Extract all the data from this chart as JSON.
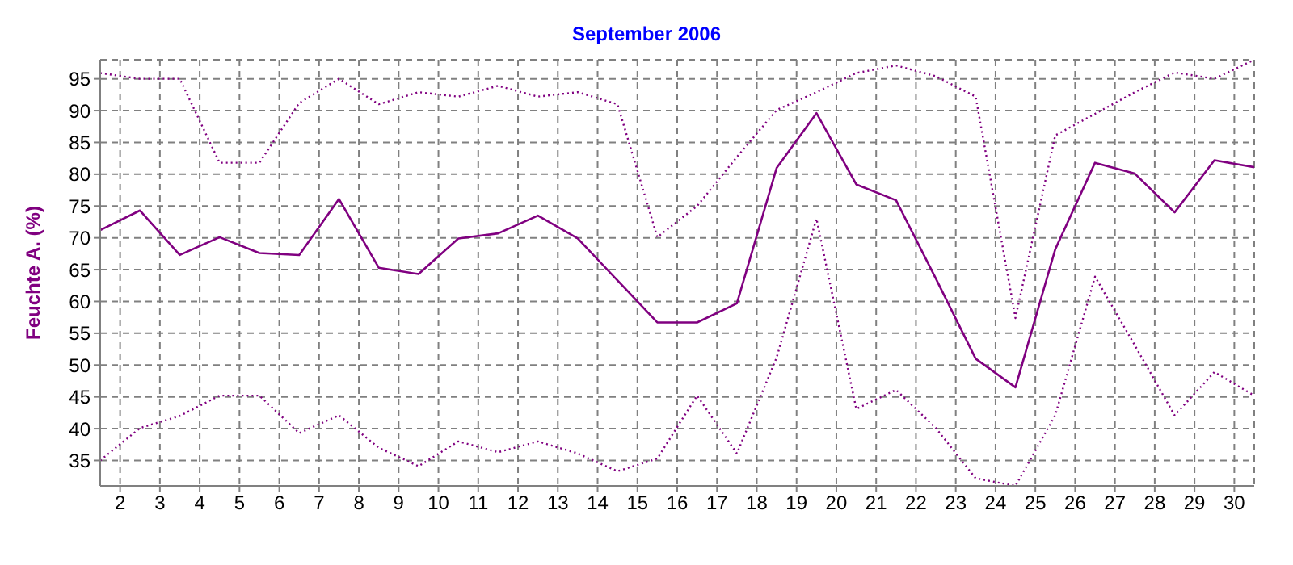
{
  "chart_data": {
    "type": "line",
    "title": "September 2006",
    "ylabel": "Feuchte A. (%)",
    "x": [
      1.5,
      2.5,
      3.5,
      4.5,
      5.5,
      6.5,
      7.5,
      8.5,
      9.5,
      10.5,
      11.5,
      12.5,
      13.5,
      14.5,
      15.5,
      16.5,
      17.5,
      18.5,
      19.5,
      20.5,
      21.5,
      22.5,
      23.5,
      24.5,
      25.5,
      26.5,
      27.5,
      28.5,
      29.5,
      30.5
    ],
    "series": [
      {
        "color": "#800080",
        "line_style": "dotted",
        "values": [
          95.9,
          95,
          95,
          81.8,
          81.8,
          91.2,
          95,
          91,
          92.9,
          92.2,
          93.9,
          92.2,
          92.9,
          91,
          70.1,
          75,
          82.7,
          90.1,
          92.9,
          95.9,
          97.1,
          95.4,
          92.2,
          57.4,
          86.1,
          89.5,
          92.9,
          96,
          95,
          98
        ]
      },
      {
        "color": "#800080",
        "line_style": "solid",
        "values": [
          71.2,
          74.3,
          67.3,
          70.1,
          67.6,
          67.3,
          76.1,
          65.3,
          64.3,
          69.9,
          70.7,
          73.5,
          69.9,
          63.3,
          56.7,
          56.7,
          59.7,
          81,
          89.6,
          78.4,
          75.9,
          63.6,
          51,
          46.5,
          68.2,
          81.8,
          80.1,
          74,
          82.2,
          81.1
        ]
      },
      {
        "color": "#800080",
        "line_style": "dotted",
        "values": [
          35,
          40.1,
          42,
          45.2,
          45.2,
          39.3,
          42.1,
          37,
          34.1,
          38,
          36.3,
          38,
          36.1,
          33.3,
          35.3,
          45.2,
          36.1,
          51.2,
          73,
          43.1,
          46.1,
          40.1,
          32.2,
          31,
          42.1,
          63.9,
          53.1,
          42.1,
          48.9,
          45.2
        ]
      }
    ],
    "xlim": [
      1.5,
      30.5
    ],
    "xticks": [
      2,
      3,
      4,
      5,
      6,
      7,
      8,
      9,
      10,
      11,
      12,
      13,
      14,
      15,
      16,
      17,
      18,
      19,
      20,
      21,
      22,
      23,
      24,
      25,
      26,
      27,
      28,
      29,
      30
    ],
    "ylim": [
      31,
      98
    ],
    "yticks": [
      35,
      40,
      45,
      50,
      55,
      60,
      65,
      70,
      75,
      80,
      85,
      90,
      95
    ],
    "grid": true,
    "marker": "none"
  }
}
